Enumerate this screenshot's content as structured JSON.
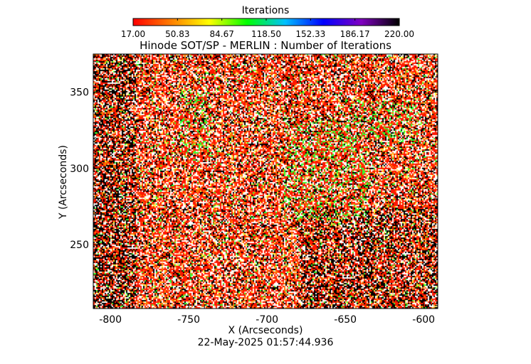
{
  "chart_data": {
    "type": "heatmap",
    "title": "Hinode SOT/SP - MERLIN : Number of Iterations",
    "xlabel": "X (Arcseconds)",
    "ylabel": "Y (Arcseconds)",
    "timestamp": "22-May-2025 01:57:44.936",
    "xlim": [
      -811,
      -591
    ],
    "ylim": [
      208,
      375
    ],
    "x_ticks": [
      {
        "value": -800,
        "label": "-800"
      },
      {
        "value": -750,
        "label": "-750"
      },
      {
        "value": -700,
        "label": "-700"
      },
      {
        "value": -650,
        "label": "-650"
      },
      {
        "value": -600,
        "label": "-600"
      }
    ],
    "y_ticks": [
      {
        "value": 250,
        "label": "250"
      },
      {
        "value": 300,
        "label": "300"
      },
      {
        "value": 350,
        "label": "350"
      }
    ],
    "colorbar": {
      "title": "Iterations",
      "range": [
        17.0,
        220.0
      ],
      "tick_labels": [
        "17.00",
        "50.83",
        "84.67",
        "118.50",
        "152.33",
        "186.17",
        "220.00"
      ],
      "stops": [
        "#ff0000",
        "#ff7f00",
        "#ffff00",
        "#00ff00",
        "#00c0ff",
        "#0000ff",
        "#8000c0",
        "#000000"
      ]
    },
    "pixel_mix": {
      "background": "#8b1a10",
      "colors": [
        "#ff1800",
        "#ffffff",
        "#ff7a00",
        "#ffd0a0",
        "#ffff40",
        "#000000",
        "#30ff30"
      ],
      "weights": [
        0.38,
        0.22,
        0.1,
        0.06,
        0.04,
        0.17,
        0.03
      ]
    }
  }
}
